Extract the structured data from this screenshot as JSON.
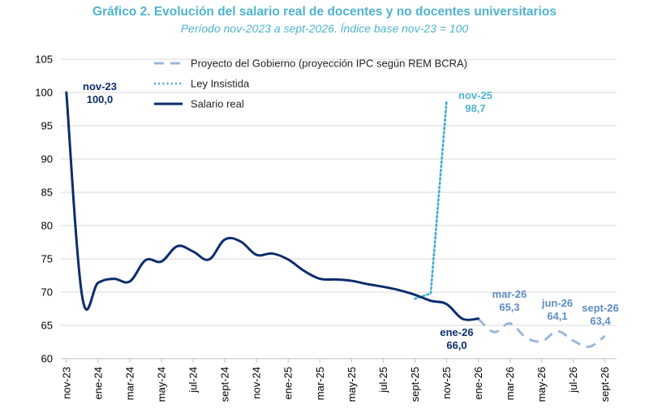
{
  "title": "Gráfico 2. Evolución del salario real de docentes y no docentes universitarios",
  "subtitle": "Período nov-2023 a sept-2026. Índice base nov-23 = 100",
  "chart_data": {
    "type": "line",
    "title": "Gráfico 2. Evolución del salario real de docentes y no docentes universitarios",
    "subtitle": "Período nov-2023 a sept-2026. Índice base nov-23 = 100",
    "xlabel": "",
    "ylabel": "",
    "ylim": [
      60,
      105
    ],
    "yticks": [
      60,
      65,
      70,
      75,
      80,
      85,
      90,
      95,
      100,
      105
    ],
    "grid": true,
    "legend_position": "top",
    "months": [
      "nov-23",
      "dic-23",
      "ene-24",
      "feb-24",
      "mar-24",
      "abr-24",
      "may-24",
      "jun-24",
      "jul-24",
      "ago-24",
      "sept-24",
      "oct-24",
      "nov-24",
      "dic-24",
      "ene-25",
      "feb-25",
      "mar-25",
      "abr-25",
      "may-25",
      "jun-25",
      "jul-25",
      "ago-25",
      "sept-25",
      "oct-25",
      "nov-25",
      "dic-25",
      "ene-26",
      "feb-26",
      "mar-26",
      "abr-26",
      "may-26",
      "jun-26",
      "jul-26",
      "ago-26",
      "sept-26"
    ],
    "tick_labels": [
      "nov-23",
      "ene-24",
      "mar-24",
      "may-24",
      "jul-24",
      "sept-24",
      "nov-24",
      "ene-25",
      "mar-25",
      "may-25",
      "jul-25",
      "sept-25",
      "nov-25",
      "ene-26",
      "mar-26",
      "may-26",
      "jul-26",
      "sept-26"
    ],
    "series": [
      {
        "name": "Proyecto del Gobierno (proyección IPC según REM BCRA)",
        "style": "dashed",
        "color": "#9bb7d8",
        "x": [
          "ene-26",
          "feb-26",
          "mar-26",
          "abr-26",
          "may-26",
          "jun-26",
          "jul-26",
          "ago-26",
          "sept-26"
        ],
        "y": [
          66.0,
          64.0,
          65.3,
          63.2,
          62.6,
          64.1,
          62.7,
          61.8,
          63.4
        ]
      },
      {
        "name": "Ley Insistida",
        "style": "dotted",
        "color": "#3fa9d2",
        "x": [
          "sept-25",
          "oct-25",
          "nov-25"
        ],
        "y": [
          69.0,
          69.8,
          98.7
        ]
      },
      {
        "name": "Salario real",
        "style": "solid",
        "color": "#0d2d6b",
        "x": [
          "nov-23",
          "dic-23",
          "ene-24",
          "feb-24",
          "mar-24",
          "abr-24",
          "may-24",
          "jun-24",
          "jul-24",
          "ago-24",
          "sept-24",
          "oct-24",
          "nov-24",
          "dic-24",
          "ene-25",
          "feb-25",
          "mar-25",
          "abr-25",
          "may-25",
          "jun-25",
          "jul-25",
          "ago-25",
          "sept-25",
          "oct-25",
          "nov-25",
          "dic-25",
          "ene-26"
        ],
        "y": [
          100.0,
          69.3,
          71.4,
          72.0,
          71.6,
          74.8,
          74.6,
          76.9,
          76.1,
          74.9,
          77.9,
          77.6,
          75.6,
          75.8,
          74.9,
          73.2,
          72.0,
          71.9,
          71.7,
          71.2,
          70.8,
          70.3,
          69.6,
          68.7,
          68.2,
          66.0,
          66.0
        ]
      }
    ],
    "annotations": [
      {
        "label": "nov-23",
        "value": "100,0",
        "color": "#0d2d6b"
      },
      {
        "label": "nov-25",
        "value": "98,7",
        "color": "#4fb3cf"
      },
      {
        "label": "ene-26",
        "value": "66,0",
        "color": "#0d2d6b"
      },
      {
        "label": "mar-26",
        "value": "65,3",
        "color": "#5b8cc2"
      },
      {
        "label": "jun-26",
        "value": "64,1",
        "color": "#5b8cc2"
      },
      {
        "label": "sept-26",
        "value": "63,4",
        "color": "#5b8cc2"
      }
    ]
  }
}
